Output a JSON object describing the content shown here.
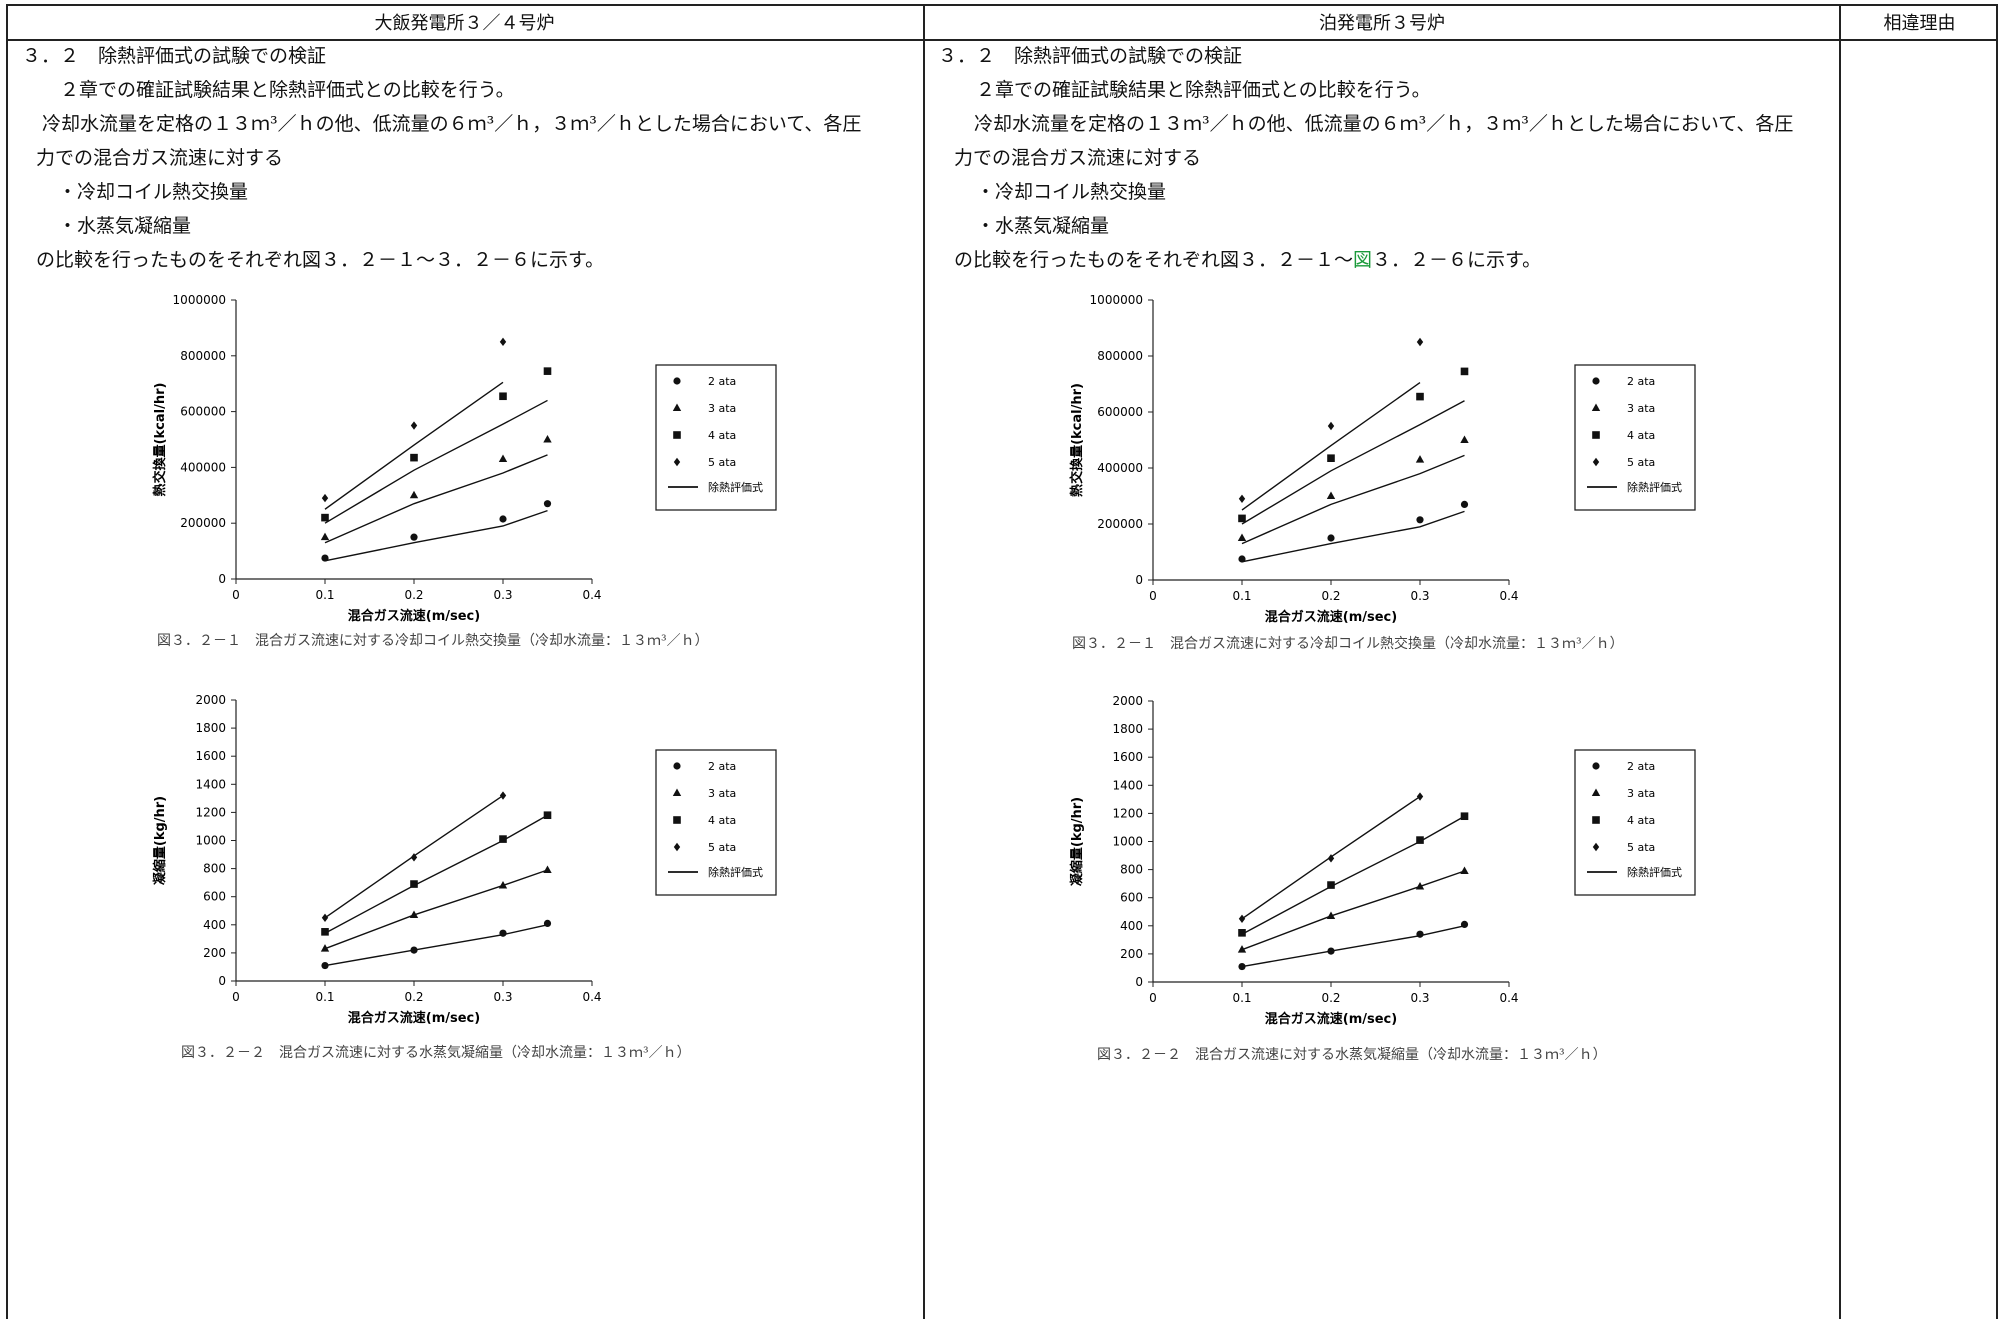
{
  "header": {
    "col1": "大飯発電所３／４号炉",
    "col2": "泊発電所３号炉",
    "col3": "相違理由"
  },
  "left_text": {
    "heading": "３．２　除熱評価式の試験での検証",
    "p1": "２章での確証試験結果と除熱評価式との比較を行う。",
    "p2a": "冷却水流量を定格の１３ｍ³／ｈの他、低流量の６ｍ³／ｈ，３ｍ³／ｈとした場合において、各圧",
    "p2b": "力での混合ガス流速に対する",
    "b1": "・冷却コイル熱交換量",
    "b2": "・水蒸気凝縮量",
    "p3": "の比較を行ったものをそれぞれ図３．２－１～３．２－６に示す。"
  },
  "right_text": {
    "heading": "３．２　除熱評価式の試験での検証",
    "p1": "２章での確証試験結果と除熱評価式との比較を行う。",
    "p2a": "冷却水流量を定格の１３ｍ³／ｈの他、低流量の６ｍ³／ｈ，３ｍ³／ｈとした場合において、各圧",
    "p2b": "力での混合ガス流速に対する",
    "b1": "・冷却コイル熱交換量",
    "b2": "・水蒸気凝縮量",
    "p3_pre": "の比較を行ったものをそれぞれ図３．２－１～",
    "p3_green": "図",
    "p3_post": "３．２－６に示す。"
  },
  "colors": {
    "highlight": "#1a9a3a",
    "line": "#222222"
  },
  "chart_data": [
    {
      "id": "heat",
      "type": "scatter",
      "title": "",
      "xlabel": "混合ガス流速(m/sec)",
      "ylabel": "熱交換量(kcal/hr)",
      "xlim": [
        0,
        0.4
      ],
      "ylim": [
        0,
        1000000
      ],
      "xticks": [
        "0",
        "0.1",
        "0.2",
        "0.3",
        "0.4"
      ],
      "yticks": [
        "0",
        "200000",
        "400000",
        "600000",
        "800000",
        "1000000"
      ],
      "caption": "図３．２－１　混合ガス流速に対する冷却コイル熱交換量（冷却水流量：１３ｍ³／ｈ）",
      "legend": [
        "2 ata",
        "3 ata",
        "4 ata",
        "5 ata",
        "除熱評価式"
      ],
      "series": [
        {
          "name": "2 ata",
          "marker": "circle",
          "x": [
            0.1,
            0.2,
            0.3,
            0.35
          ],
          "y": [
            75000,
            150000,
            215000,
            270000
          ]
        },
        {
          "name": "3 ata",
          "marker": "triangle",
          "x": [
            0.1,
            0.2,
            0.3,
            0.35
          ],
          "y": [
            150000,
            300000,
            430000,
            500000
          ]
        },
        {
          "name": "4 ata",
          "marker": "square",
          "x": [
            0.1,
            0.2,
            0.3,
            0.35
          ],
          "y": [
            220000,
            435000,
            655000,
            745000
          ]
        },
        {
          "name": "5 ata",
          "marker": "diamond",
          "x": [
            0.1,
            0.2,
            0.3
          ],
          "y": [
            290000,
            550000,
            850000
          ]
        }
      ],
      "fits": [
        {
          "x": [
            0.1,
            0.2,
            0.3,
            0.35
          ],
          "y": [
            65000,
            130000,
            190000,
            245000
          ]
        },
        {
          "x": [
            0.1,
            0.2,
            0.3,
            0.35
          ],
          "y": [
            130000,
            270000,
            380000,
            445000
          ]
        },
        {
          "x": [
            0.1,
            0.2,
            0.3,
            0.35
          ],
          "y": [
            200000,
            390000,
            555000,
            640000
          ]
        },
        {
          "x": [
            0.1,
            0.2,
            0.3
          ],
          "y": [
            250000,
            480000,
            705000
          ]
        }
      ]
    },
    {
      "id": "cond",
      "type": "scatter",
      "title": "",
      "xlabel": "混合ガス流速(m/sec)",
      "ylabel": "凝縮量(kg/hr)",
      "xlim": [
        0,
        0.4
      ],
      "ylim": [
        0,
        2000
      ],
      "xticks": [
        "0",
        "0.1",
        "0.2",
        "0.3",
        "0.4"
      ],
      "yticks": [
        "0",
        "200",
        "400",
        "600",
        "800",
        "1000",
        "1200",
        "1400",
        "1600",
        "1800",
        "2000"
      ],
      "caption": "図３．２－２　混合ガス流速に対する水蒸気凝縮量（冷却水流量：１３ｍ³／ｈ）",
      "legend": [
        "2 ata",
        "3 ata",
        "4 ata",
        "5 ata",
        "除熱評価式"
      ],
      "series": [
        {
          "name": "2 ata",
          "marker": "circle",
          "x": [
            0.1,
            0.2,
            0.3,
            0.35
          ],
          "y": [
            110,
            220,
            340,
            410
          ]
        },
        {
          "name": "3 ata",
          "marker": "triangle",
          "x": [
            0.1,
            0.2,
            0.3,
            0.35
          ],
          "y": [
            230,
            470,
            680,
            790
          ]
        },
        {
          "name": "4 ata",
          "marker": "square",
          "x": [
            0.1,
            0.2,
            0.3,
            0.35
          ],
          "y": [
            350,
            690,
            1010,
            1180
          ]
        },
        {
          "name": "5 ata",
          "marker": "diamond",
          "x": [
            0.1,
            0.2,
            0.3
          ],
          "y": [
            450,
            880,
            1320
          ]
        }
      ],
      "fits": [
        {
          "x": [
            0.1,
            0.2,
            0.3,
            0.35
          ],
          "y": [
            110,
            220,
            330,
            400
          ]
        },
        {
          "x": [
            0.1,
            0.2,
            0.3,
            0.35
          ],
          "y": [
            230,
            470,
            680,
            790
          ]
        },
        {
          "x": [
            0.1,
            0.2,
            0.3,
            0.35
          ],
          "y": [
            340,
            680,
            1000,
            1180
          ]
        },
        {
          "x": [
            0.1,
            0.2,
            0.3
          ],
          "y": [
            450,
            890,
            1320
          ]
        }
      ]
    }
  ]
}
